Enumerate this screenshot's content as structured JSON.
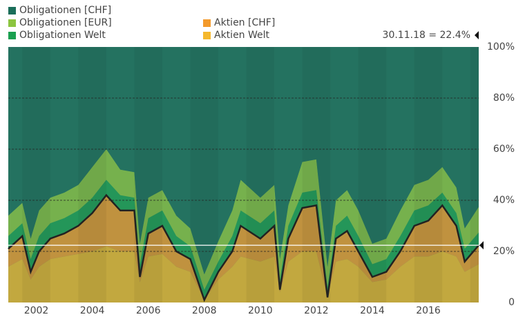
{
  "chart_data": {
    "type": "stacked-area",
    "annotation": "30.11.18 = 22.4%",
    "current_value": 22.4,
    "x": [
      2001.5,
      2002,
      2002.3,
      2002.6,
      2003,
      2003.5,
      2004,
      2004.5,
      2005,
      2005.5,
      2006,
      2006.2,
      2006.5,
      2007,
      2007.5,
      2008,
      2008.5,
      2009,
      2009.5,
      2009.8,
      2010.5,
      2011,
      2011.2,
      2011.5,
      2012,
      2012.5,
      2012.9,
      2013.2,
      2013.6,
      2014,
      2014.5,
      2015,
      2015.5,
      2016,
      2016.5,
      2017,
      2017.5,
      2017.8,
      2018.3
    ],
    "xlim": [
      2001.5,
      2018.3
    ],
    "xticks": [
      2002,
      2004,
      2006,
      2008,
      2010,
      2012,
      2014,
      2016
    ],
    "ylim": [
      0,
      100
    ],
    "yticks": [
      0,
      {
        "value": 20,
        "label": "20%"
      },
      {
        "value": 40,
        "label": "40%"
      },
      {
        "value": 60,
        "label": "60%"
      },
      {
        "value": 80,
        "label": "80%"
      },
      {
        "value": 100,
        "label": "100%"
      }
    ],
    "grid": true,
    "series": [
      {
        "name": "Obligationen [CHF]",
        "color": "#1a6e5a",
        "values": [
          66,
          61,
          75,
          64,
          59,
          57,
          54,
          47,
          40,
          48,
          49,
          77,
          59,
          56,
          66,
          71,
          89,
          76,
          64,
          52,
          59,
          54,
          83,
          62,
          45,
          44,
          86,
          60,
          56,
          64,
          77,
          75,
          64,
          54,
          52,
          47,
          55,
          71,
          62.6
        ]
      },
      {
        "name": "Obligationen [EUR]",
        "color": "#8cc540",
        "values": [
          8,
          8,
          8,
          10,
          10,
          10,
          10,
          12,
          12,
          10,
          10,
          8,
          8,
          8,
          8,
          7,
          6,
          8,
          10,
          12,
          10,
          10,
          8,
          8,
          12,
          12,
          8,
          10,
          10,
          10,
          8,
          8,
          10,
          10,
          10,
          10,
          10,
          8,
          10
        ]
      },
      {
        "name": "Obligationen Welt",
        "color": "#1aa050",
        "values": [
          5,
          5,
          5,
          6,
          6,
          6,
          6,
          6,
          6,
          6,
          5,
          5,
          6,
          6,
          6,
          5,
          4,
          4,
          6,
          6,
          6,
          6,
          4,
          5,
          6,
          6,
          4,
          5,
          6,
          6,
          5,
          5,
          6,
          6,
          6,
          5,
          5,
          5,
          5
        ]
      },
      {
        "name": "Aktien [CHF]",
        "color": "#f39a2c",
        "values": [
          7,
          9,
          3,
          6,
          8,
          9,
          11,
          15,
          20,
          16,
          16,
          2,
          9,
          11,
          6,
          5,
          0,
          3,
          6,
          12,
          9,
          12,
          1,
          9,
          17,
          18,
          0,
          9,
          11,
          6,
          2,
          3,
          6,
          12,
          14,
          18,
          12,
          4,
          7.4
        ]
      },
      {
        "name": "Aktien Welt",
        "color": "#f5b82d",
        "values": [
          14,
          17,
          9,
          14,
          17,
          18,
          19,
          20,
          22,
          20,
          20,
          8,
          18,
          19,
          14,
          12,
          1,
          9,
          14,
          18,
          16,
          18,
          4,
          16,
          20,
          20,
          2,
          16,
          17,
          14,
          8,
          9,
          14,
          18,
          18,
          20,
          18,
          12,
          15
        ]
      }
    ]
  }
}
